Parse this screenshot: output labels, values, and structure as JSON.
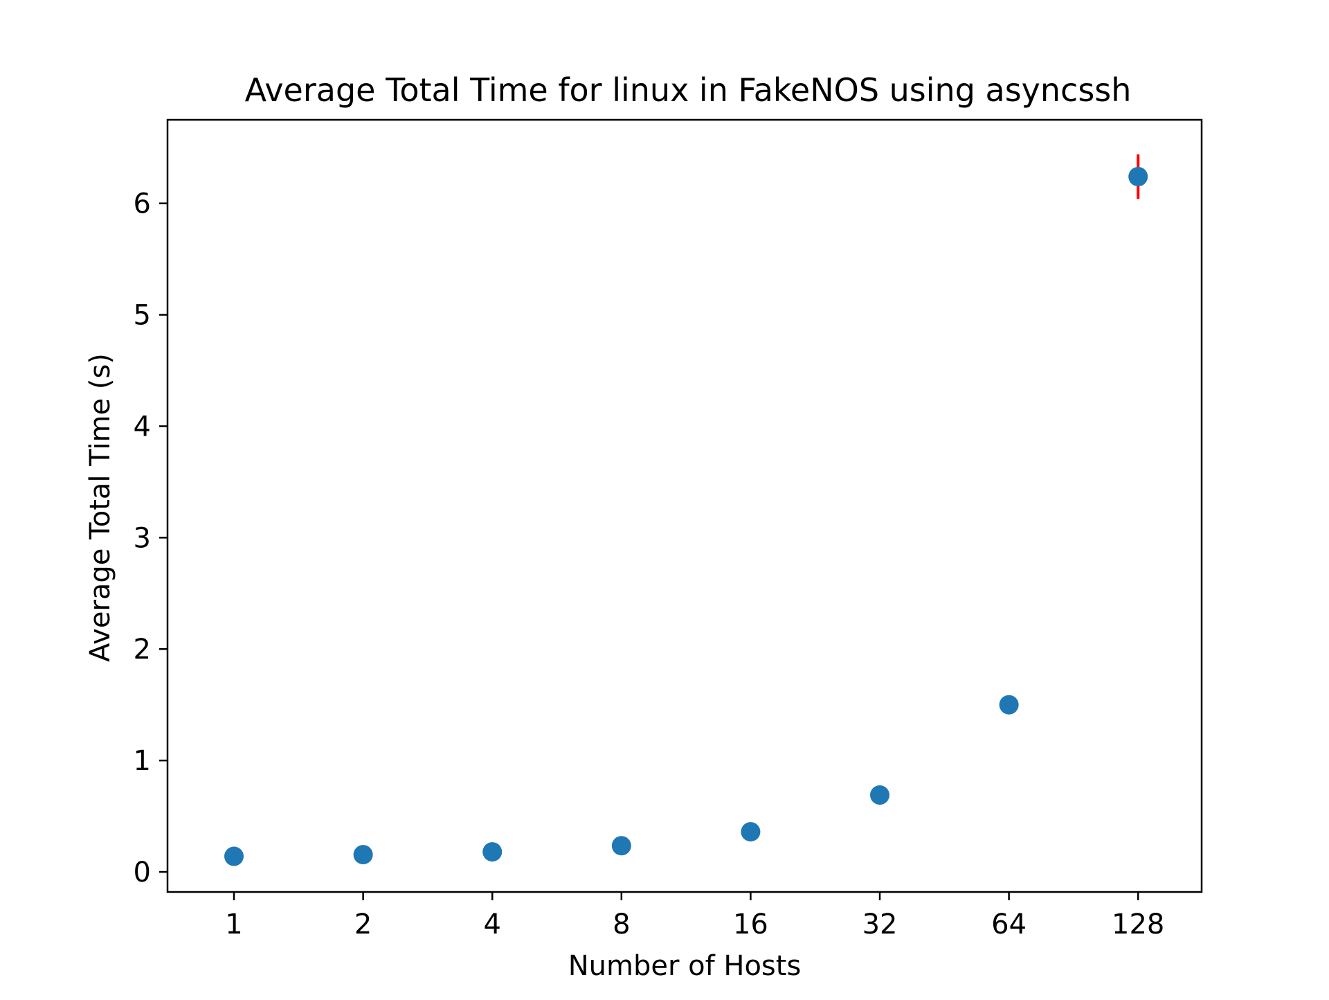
{
  "chart_data": {
    "type": "scatter",
    "title": "Average Total Time for linux in FakeNOS using asyncssh",
    "xlabel": "Number of Hosts",
    "ylabel": "Average Total Time (s)",
    "x_scale": "log2",
    "x_ticks": [
      "1",
      "2",
      "4",
      "8",
      "16",
      "32",
      "64",
      "128"
    ],
    "y_ticks": [
      "0",
      "1",
      "2",
      "3",
      "4",
      "5",
      "6"
    ],
    "xlim": [
      0.7,
      180
    ],
    "ylim": [
      -0.18,
      6.75
    ],
    "grid": false,
    "legend": "none",
    "series": [
      {
        "x": [
          1,
          2,
          4,
          8,
          16,
          32,
          64,
          128
        ],
        "y": [
          0.14,
          0.155,
          0.18,
          0.235,
          0.36,
          0.69,
          1.5,
          6.24
        ],
        "yerr": [
          0.005,
          0.005,
          0.005,
          0.01,
          0.01,
          0.015,
          0.02,
          0.2
        ],
        "marker_color": "#1f77b4",
        "errorbar_color": "#ff0000"
      }
    ]
  }
}
